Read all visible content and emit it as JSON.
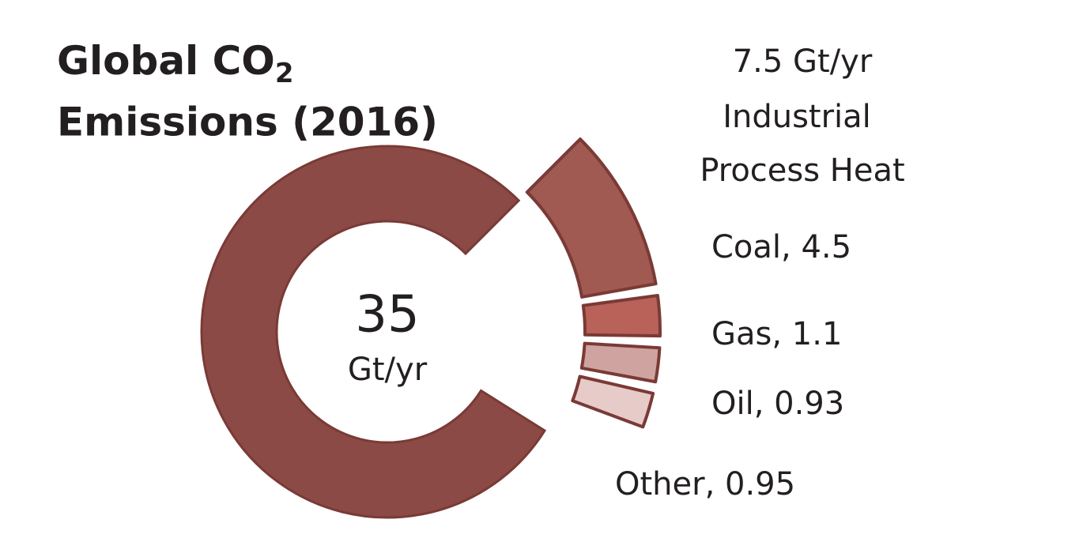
{
  "chart_data": {
    "type": "donut",
    "title": {
      "main": "Global CO",
      "subscript": "2",
      "line2": "Emissions (2016)"
    },
    "total": 35,
    "total_unit": "Gt/yr",
    "color": "#8b4a45",
    "breakout": {
      "value": 7.5,
      "value_label": "7.5 Gt/yr",
      "name_lines": [
        "Industrial",
        "Process Heat"
      ]
    },
    "values": [
      4.5,
      1.1,
      0.93,
      0.95
    ],
    "value_labels": [
      "Coal, 4.5",
      "Gas, 1.1",
      "Oil, 0.93",
      "Other, 0.95"
    ],
    "colors": [
      "#a05a52",
      "#b8625a",
      "#cfa4a0",
      "#e6cbc9"
    ]
  }
}
